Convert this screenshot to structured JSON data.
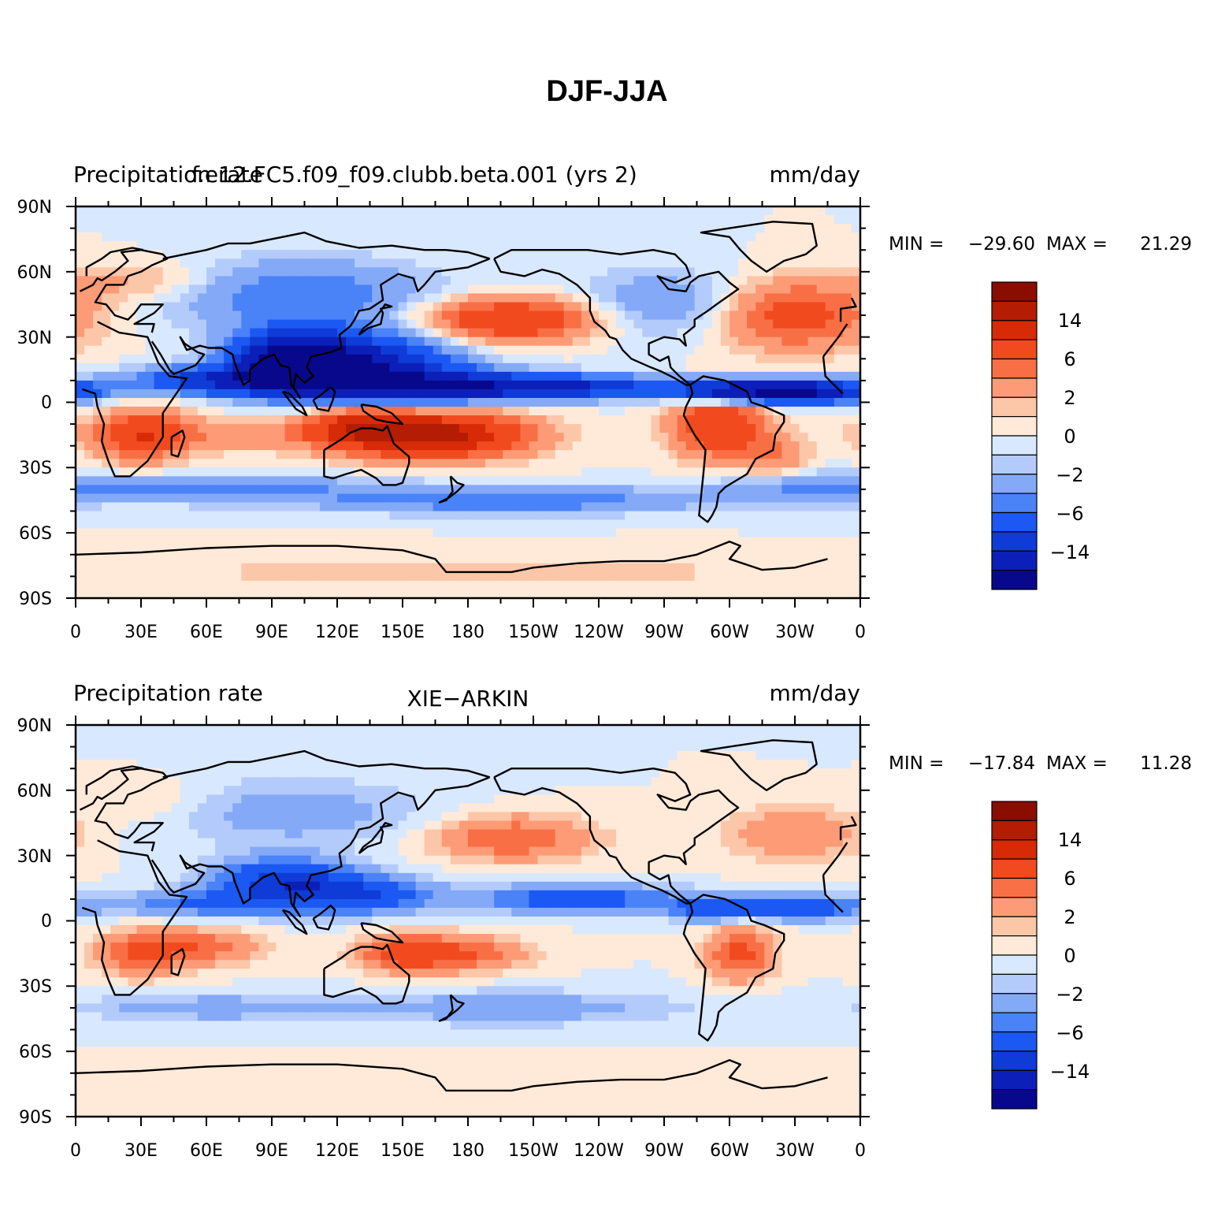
{
  "title": "DJF-JJA",
  "chart_data": [
    {
      "type": "heatmap",
      "left_label": "Precipitation rate",
      "center_label": "f.e12.FC5.f09_f09.clubb.beta.001 (yrs 2)",
      "right_label": "mm/day",
      "min_label": "MIN =",
      "min": "−29.60",
      "max_label": "MAX =",
      "max": "21.29",
      "x_ticks": [
        "0",
        "30E",
        "60E",
        "90E",
        "120E",
        "150E",
        "180",
        "150W",
        "120W",
        "90W",
        "60W",
        "30W",
        "0"
      ],
      "y_ticks": [
        "90N",
        "60N",
        "30N",
        "0",
        "30S",
        "60S",
        "90S"
      ],
      "xlim": [
        0,
        360
      ],
      "ylim": [
        -90,
        90
      ],
      "colorbar_labels": [
        "14",
        "6",
        "2",
        "0",
        "−2",
        "−6",
        "−14"
      ],
      "blobs": [
        [
          130,
          15,
          40,
          15,
          -18
        ],
        [
          100,
          20,
          25,
          12,
          -22
        ],
        [
          70,
          10,
          40,
          6,
          -14
        ],
        [
          160,
          8,
          50,
          7,
          -12
        ],
        [
          220,
          7,
          60,
          5,
          -14
        ],
        [
          330,
          5,
          35,
          5,
          -22
        ],
        [
          295,
          5,
          20,
          5,
          -10
        ],
        [
          100,
          50,
          60,
          15,
          -6
        ],
        [
          270,
          45,
          40,
          15,
          -4
        ],
        [
          200,
          -45,
          80,
          6,
          -6
        ],
        [
          60,
          -40,
          80,
          6,
          -5
        ],
        [
          330,
          -40,
          40,
          8,
          -3
        ],
        [
          200,
          38,
          40,
          10,
          10
        ],
        [
          330,
          40,
          35,
          15,
          8
        ],
        [
          35,
          55,
          40,
          10,
          3
        ],
        [
          30,
          -15,
          20,
          12,
          8
        ],
        [
          130,
          -10,
          25,
          10,
          10
        ],
        [
          165,
          -15,
          40,
          10,
          16
        ],
        [
          295,
          -10,
          20,
          15,
          10
        ],
        [
          320,
          -25,
          15,
          10,
          4
        ],
        [
          60,
          -15,
          60,
          8,
          3
        ],
        [
          180,
          -78,
          180,
          8,
          1.5
        ]
      ]
    },
    {
      "type": "heatmap",
      "left_label": "Precipitation rate",
      "center_label": "XIE−ARKIN",
      "right_label": "mm/day",
      "min_label": "MIN =",
      "min": "−17.84",
      "max_label": "MAX =",
      "max": "11.28",
      "x_ticks": [
        "0",
        "30E",
        "60E",
        "90E",
        "120E",
        "150E",
        "180",
        "150W",
        "120W",
        "90W",
        "60W",
        "30W",
        "0"
      ],
      "y_ticks": [
        "90N",
        "60N",
        "30N",
        "0",
        "30S",
        "60S",
        "90S"
      ],
      "xlim": [
        0,
        360
      ],
      "ylim": [
        -90,
        90
      ],
      "colorbar_labels": [
        "14",
        "6",
        "2",
        "0",
        "−2",
        "−6",
        "−14"
      ],
      "blobs": [
        [
          95,
          18,
          30,
          10,
          -12
        ],
        [
          130,
          12,
          30,
          8,
          -10
        ],
        [
          60,
          8,
          40,
          6,
          -6
        ],
        [
          230,
          10,
          50,
          6,
          -8
        ],
        [
          330,
          6,
          30,
          5,
          -10
        ],
        [
          290,
          5,
          15,
          5,
          -8
        ],
        [
          100,
          50,
          60,
          15,
          -3
        ],
        [
          200,
          -40,
          80,
          8,
          -3
        ],
        [
          60,
          -40,
          60,
          6,
          -3
        ],
        [
          200,
          38,
          35,
          10,
          6
        ],
        [
          330,
          40,
          30,
          12,
          4
        ],
        [
          30,
          -15,
          20,
          10,
          6
        ],
        [
          60,
          -12,
          25,
          8,
          5
        ],
        [
          150,
          -15,
          20,
          8,
          6
        ],
        [
          175,
          -15,
          30,
          8,
          6
        ],
        [
          305,
          -15,
          15,
          12,
          7
        ],
        [
          35,
          55,
          30,
          10,
          1.5
        ],
        [
          180,
          -78,
          180,
          8,
          1
        ]
      ]
    }
  ]
}
